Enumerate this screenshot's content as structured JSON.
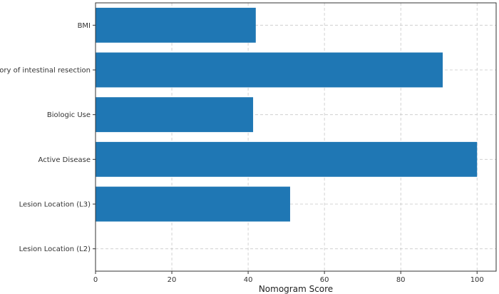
{
  "chart_data": {
    "type": "bar",
    "orientation": "horizontal",
    "title": "",
    "xlabel": "Nomogram Score",
    "ylabel": "",
    "xlim": [
      0,
      105
    ],
    "x_ticks": [
      0,
      20,
      40,
      60,
      80,
      100
    ],
    "grid": true,
    "grid_style": "dashed",
    "bar_color": "#1f77b4",
    "categories": [
      "BMI",
      "History of intestinal resection",
      "Biologic Use",
      "Active Disease",
      "Lesion Location (L3)",
      "Lesion Location (L2)"
    ],
    "values": [
      42,
      91,
      41.3,
      100,
      51,
      0
    ]
  }
}
